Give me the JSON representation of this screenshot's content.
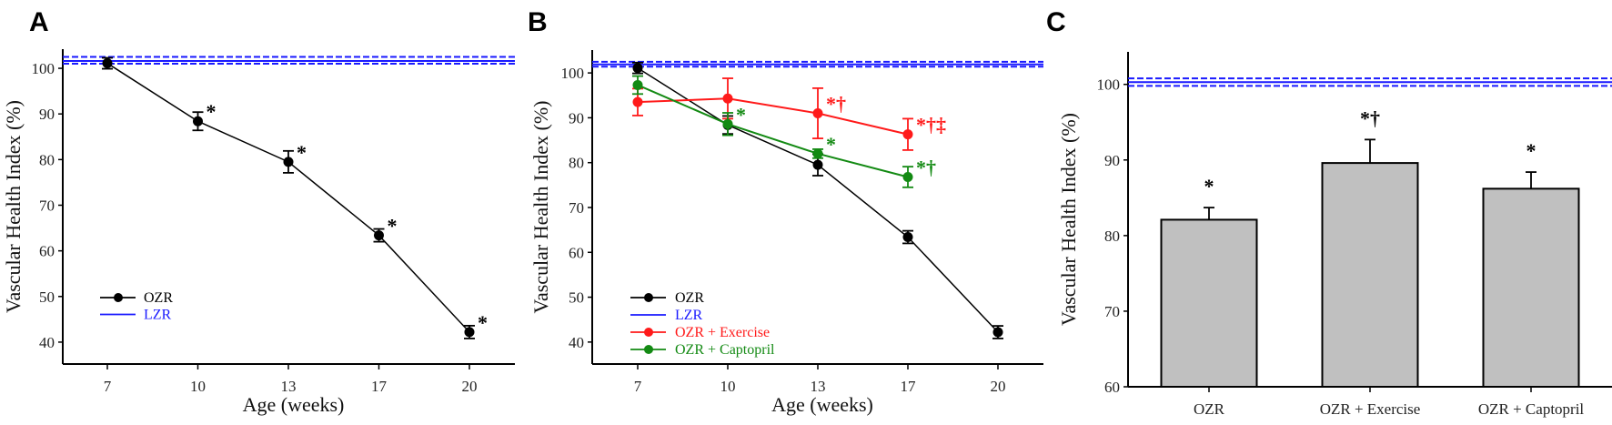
{
  "colors": {
    "OZR": "#000000",
    "LZR": "#1a1aff",
    "OZR + Exercise": "#ff1a1a",
    "OZR + Captopril": "#138a13",
    "bar": "#c0c0c0"
  },
  "chart_data": [
    {
      "panel": "A",
      "type": "line",
      "title": "",
      "xlabel": "Age (weeks)",
      "ylabel": "Vascular Health Index (%)",
      "categories": [
        "7",
        "10",
        "13",
        "17",
        "20"
      ],
      "ylim": [
        35.2,
        104.2
      ],
      "yticks": [
        "40",
        "50",
        "60",
        "70",
        "80",
        "90",
        "100"
      ],
      "series": [
        {
          "name": "OZR",
          "values": [
            101.1,
            88.4,
            79.5,
            63.4,
            42.2
          ],
          "errors": [
            1.2,
            2.0,
            2.4,
            1.4,
            1.4
          ],
          "annotations": [
            "",
            "*",
            "*",
            "*",
            "*"
          ]
        }
      ],
      "reference": {
        "name": "LZR",
        "mean": 101.6,
        "upper": 102.5,
        "lower": 101.0
      },
      "legend": [
        "OZR",
        "LZR"
      ],
      "legend_position": "bottom-left"
    },
    {
      "panel": "B",
      "type": "line",
      "title": "",
      "xlabel": "Age (weeks)",
      "ylabel": "Vascular Health Index (%)",
      "categories": [
        "7",
        "10",
        "13",
        "17",
        "20"
      ],
      "ylim": [
        35.1,
        105.1
      ],
      "yticks": [
        "40",
        "50",
        "60",
        "70",
        "80",
        "90",
        "100"
      ],
      "series": [
        {
          "name": "OZR",
          "values": [
            101.1,
            88.4,
            79.5,
            63.4,
            42.2
          ],
          "errors": [
            1.2,
            2.0,
            2.4,
            1.4,
            1.4
          ],
          "annotations": [
            "",
            "",
            "",
            "",
            ""
          ]
        },
        {
          "name": "OZR + Exercise",
          "values": [
            93.5,
            94.3,
            91.0,
            86.3,
            null
          ],
          "errors": [
            3.0,
            4.5,
            5.6,
            3.5,
            null
          ],
          "annotations": [
            "",
            "",
            "*†",
            "*†‡",
            ""
          ]
        },
        {
          "name": "OZR + Captopril",
          "values": [
            97.3,
            88.6,
            82.0,
            76.8,
            null
          ],
          "errors": [
            2.0,
            2.5,
            1.0,
            2.3,
            null
          ],
          "annotations": [
            "",
            "*",
            "*",
            "*†",
            ""
          ]
        }
      ],
      "reference": {
        "name": "LZR",
        "mean": 101.9,
        "upper": 102.5,
        "lower": 101.4
      },
      "legend": [
        "OZR",
        "LZR",
        "OZR + Exercise",
        "OZR + Captopril"
      ],
      "legend_position": "bottom-left"
    },
    {
      "panel": "C",
      "type": "bar",
      "title": "",
      "xlabel": "",
      "ylabel": "Vascular Health Index (%)",
      "categories": [
        "OZR",
        "OZR + Exercise",
        "OZR + Captopril"
      ],
      "values": [
        82.1,
        89.6,
        86.2
      ],
      "errors": [
        1.6,
        3.1,
        2.2
      ],
      "annotations": [
        "*",
        "*†",
        "*"
      ],
      "ylim": [
        60,
        104.3
      ],
      "yticks": [
        "60",
        "70",
        "80",
        "90",
        "100"
      ],
      "reference": {
        "name": "LZR",
        "mean": 100.3,
        "upper": 100.8,
        "lower": 99.8
      }
    }
  ]
}
